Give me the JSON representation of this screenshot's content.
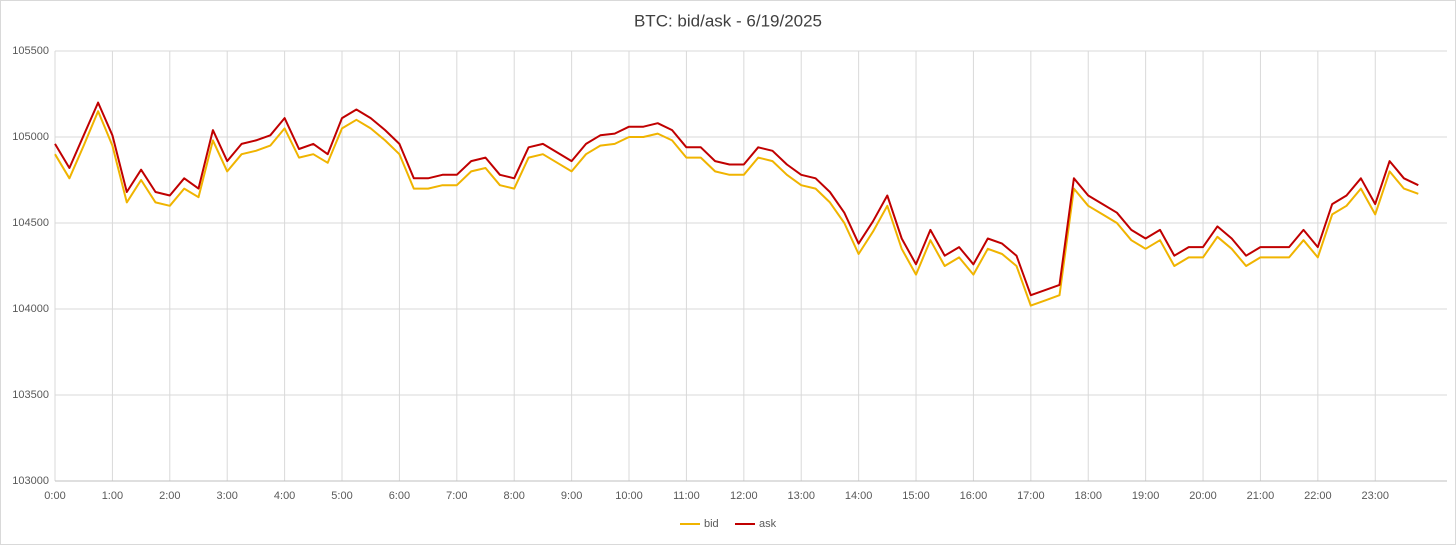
{
  "chart_data": {
    "type": "line",
    "title": "BTC: bid/ask - 6/19/2025",
    "categories": [
      "0:00",
      null,
      null,
      null,
      "1:00",
      null,
      null,
      null,
      "2:00",
      null,
      null,
      null,
      "3:00",
      null,
      null,
      null,
      "4:00",
      null,
      null,
      null,
      "5:00",
      null,
      null,
      null,
      "6:00",
      null,
      null,
      null,
      "7:00",
      null,
      null,
      null,
      "8:00",
      null,
      null,
      null,
      "9:00",
      null,
      null,
      null,
      "10:00",
      null,
      null,
      null,
      "11:00",
      null,
      null,
      null,
      "12:00",
      null,
      null,
      null,
      "13:00",
      null,
      null,
      null,
      "14:00",
      null,
      null,
      null,
      "15:00",
      null,
      null,
      null,
      "16:00",
      null,
      null,
      null,
      "17:00",
      null,
      null,
      null,
      "18:00",
      null,
      null,
      null,
      "19:00",
      null,
      null,
      null,
      "20:00",
      null,
      null,
      null,
      "21:00",
      null,
      null,
      null,
      "22:00",
      null,
      null,
      null,
      "23:00",
      null,
      null,
      null
    ],
    "series": [
      {
        "name": "bid",
        "color": "#f0b400",
        "values": [
          104900,
          104760,
          104950,
          105150,
          104950,
          104620,
          104750,
          104620,
          104600,
          104700,
          104650,
          104980,
          104800,
          104900,
          104920,
          104950,
          105050,
          104880,
          104900,
          104850,
          105050,
          105100,
          105050,
          104980,
          104900,
          104700,
          104700,
          104720,
          104720,
          104800,
          104820,
          104720,
          104700,
          104880,
          104900,
          104850,
          104800,
          104900,
          104950,
          104960,
          105000,
          105000,
          105020,
          104980,
          104880,
          104880,
          104800,
          104780,
          104780,
          104880,
          104860,
          104780,
          104720,
          104700,
          104620,
          104500,
          104320,
          104450,
          104600,
          104350,
          104200,
          104400,
          104250,
          104300,
          104200,
          104350,
          104320,
          104250,
          104020,
          104050,
          104080,
          104700,
          104600,
          104550,
          104500,
          104400,
          104350,
          104400,
          104250,
          104300,
          104300,
          104420,
          104350,
          104250,
          104300,
          104300,
          104300,
          104400,
          104300,
          104550,
          104600,
          104700,
          104550,
          104800,
          104700,
          104670
        ]
      },
      {
        "name": "ask",
        "color": "#c00000",
        "values": [
          104960,
          104820,
          105010,
          105200,
          105010,
          104680,
          104810,
          104680,
          104660,
          104760,
          104700,
          105040,
          104860,
          104960,
          104980,
          105010,
          105110,
          104930,
          104960,
          104900,
          105110,
          105160,
          105110,
          105040,
          104960,
          104760,
          104760,
          104780,
          104780,
          104860,
          104880,
          104780,
          104760,
          104940,
          104960,
          104910,
          104860,
          104960,
          105010,
          105020,
          105060,
          105060,
          105080,
          105040,
          104940,
          104940,
          104860,
          104840,
          104840,
          104940,
          104920,
          104840,
          104780,
          104760,
          104680,
          104560,
          104380,
          104510,
          104660,
          104410,
          104260,
          104460,
          104310,
          104360,
          104260,
          104410,
          104380,
          104310,
          104080,
          104110,
          104140,
          104760,
          104660,
          104610,
          104560,
          104460,
          104410,
          104460,
          104310,
          104360,
          104360,
          104480,
          104410,
          104310,
          104360,
          104360,
          104360,
          104460,
          104360,
          104610,
          104660,
          104760,
          104610,
          104860,
          104760,
          104720
        ]
      }
    ],
    "ylim": [
      103000,
      105500
    ],
    "yticks": [
      103000,
      103500,
      104000,
      104500,
      105000,
      105500
    ],
    "grid": true,
    "legend": "bottom"
  }
}
